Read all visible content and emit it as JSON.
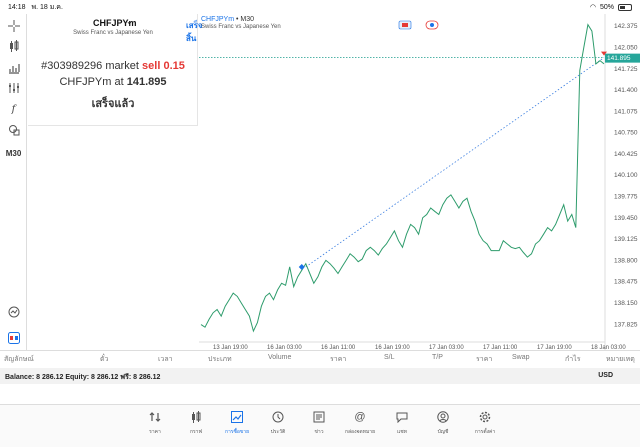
{
  "status": {
    "time": "14:18",
    "date": "พ. 18 ม.ค.",
    "battery": "50%"
  },
  "toolbar": {
    "timeframe": "M30"
  },
  "order": {
    "symbol": "CHFJPYm",
    "done_label": "เสร็จสิ้น",
    "description": "Swiss Franc vs Japanese Yen",
    "ticket": "#303989296 market",
    "side": "sell",
    "volume": "0.15",
    "at_prefix": "CHFJPYm at",
    "at_price": "141.895",
    "status": "เสร็จแล้ว"
  },
  "chart": {
    "title": "CHFJPYm",
    "timeframe": "• M30",
    "subtitle": "Swiss Franc vs Japanese Yen",
    "price_label": "141.895",
    "colors": {
      "line": "#2e9c6c",
      "price_line": "#1a9c8c",
      "order_line": "#3a7ee0",
      "sell_marker": "#e53935",
      "buy_marker": "#1a73e8"
    }
  },
  "chart_data": {
    "type": "line",
    "yticks": [
      "142.375",
      "142.050",
      "141.725",
      "141.400",
      "141.075",
      "140.750",
      "140.425",
      "140.100",
      "139.775",
      "139.450",
      "139.125",
      "138.800",
      "138.475",
      "138.150",
      "137.825"
    ],
    "xticks": [
      "13 Jan 19:00",
      "16 Jan 03:00",
      "16 Jan 11:00",
      "16 Jan 19:00",
      "17 Jan 03:00",
      "17 Jan 11:00",
      "17 Jan 19:00",
      "18 Jan 03:00"
    ],
    "ylim": [
      137.6,
      142.5
    ],
    "current_price": 141.895,
    "x": [
      0,
      2,
      4,
      6,
      8,
      10,
      12,
      14,
      16,
      18,
      20,
      22,
      24,
      26,
      28,
      30,
      32,
      34,
      36,
      38,
      40,
      42,
      44,
      46,
      48,
      50,
      52,
      54,
      56,
      58,
      60,
      62,
      64,
      66,
      68,
      70,
      72,
      74,
      76,
      78,
      80,
      82,
      84,
      86,
      88,
      90,
      92,
      94,
      96,
      98,
      100,
      102,
      104,
      106,
      108,
      110,
      112,
      114,
      116,
      118,
      120,
      122,
      124,
      126,
      128,
      130,
      132,
      134,
      136,
      138,
      140,
      142,
      144,
      146,
      148,
      150,
      152,
      154,
      156,
      158,
      160,
      162,
      164,
      166,
      168,
      170,
      172,
      174,
      176,
      178,
      180,
      182,
      184,
      186,
      188,
      190,
      192,
      194,
      196,
      198,
      200
    ],
    "values": [
      137.82,
      137.78,
      137.9,
      138.0,
      138.05,
      137.95,
      138.1,
      138.2,
      138.3,
      138.25,
      138.15,
      138.05,
      137.95,
      137.72,
      137.85,
      138.1,
      138.25,
      138.3,
      138.2,
      138.35,
      138.45,
      138.42,
      138.7,
      138.4,
      138.55,
      138.65,
      138.75,
      138.6,
      138.45,
      138.55,
      138.7,
      138.8,
      138.75,
      138.68,
      138.6,
      138.7,
      138.8,
      138.9,
      138.85,
      138.78,
      138.82,
      138.95,
      139.0,
      138.95,
      138.88,
      138.98,
      139.05,
      139.15,
      139.25,
      139.1,
      139.0,
      139.2,
      139.35,
      139.3,
      139.2,
      139.45,
      139.5,
      139.6,
      139.55,
      139.5,
      139.65,
      139.75,
      139.8,
      139.7,
      139.6,
      139.7,
      139.75,
      139.55,
      139.4,
      139.2,
      139.1,
      139.05,
      138.95,
      138.95,
      138.95,
      139.1,
      139.05,
      139.0,
      138.98,
      139.0,
      138.92,
      138.85,
      138.9,
      139.05,
      139.1,
      139.2,
      139.3,
      139.25,
      139.35,
      139.5,
      139.65,
      139.4,
      139.5,
      139.3,
      141.7,
      142.05,
      142.4,
      142.3,
      141.8,
      141.85,
      141.8
    ],
    "order_entry": {
      "x": 50,
      "price": 138.7
    },
    "order_exit": {
      "x": 200,
      "price": 141.895
    }
  },
  "columns": [
    "สัญลักษณ์",
    "ตั๋ว",
    "เวลา",
    "ประเภท",
    "Volume",
    "ราคา",
    "S/L",
    "T/P",
    "ราคา",
    "Swap",
    "กำไร",
    "หมายเหตุ"
  ],
  "balance": {
    "text": "Balance: 8 286.12 Equity: 8 286.12 ฟรี: 8 286.12",
    "currency": "USD"
  },
  "tabs": [
    {
      "label": "ราคา",
      "icon": "quotes-icon"
    },
    {
      "label": "กราฟ",
      "icon": "candles-icon"
    },
    {
      "label": "การซื้อขาย",
      "icon": "trade-icon"
    },
    {
      "label": "ประวัติ",
      "icon": "history-icon"
    },
    {
      "label": "ข่าว",
      "icon": "news-icon"
    },
    {
      "label": "กล่องจดหมาย",
      "icon": "mailbox-icon"
    },
    {
      "label": "แชท",
      "icon": "chat-icon"
    },
    {
      "label": "บัญชี",
      "icon": "account-icon"
    },
    {
      "label": "การตั้งค่า",
      "icon": "settings-icon"
    }
  ]
}
